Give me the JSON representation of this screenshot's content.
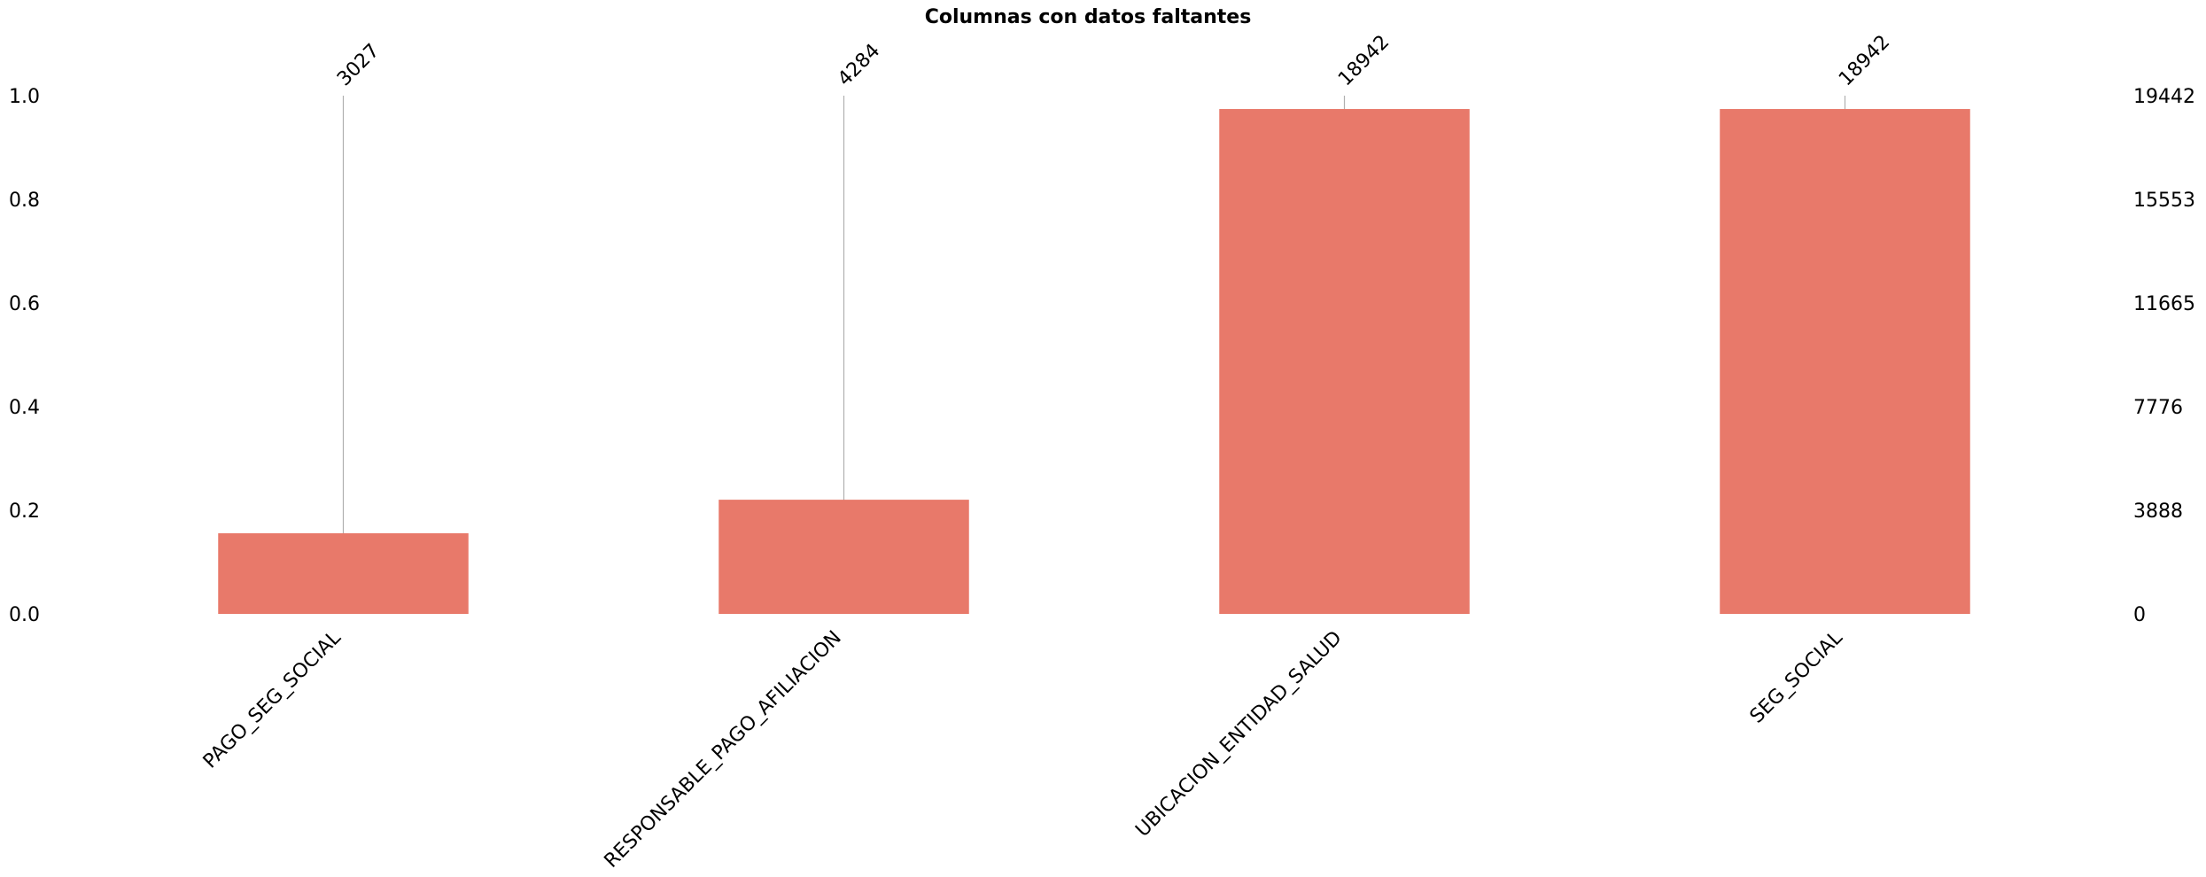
{
  "chart_data": {
    "type": "bar",
    "title": "Columnas con datos faltantes",
    "categories": [
      "PAGO_SEG_SOCIAL",
      "RESPONSABLE_PAGO_AFILIACION",
      "UBICACION_ENTIDAD_SALUD",
      "SEG_SOCIAL"
    ],
    "values": [
      3027,
      4284,
      18942,
      18942
    ],
    "total": 19442,
    "ylim": [
      0,
      1.0
    ],
    "left_ticks": [
      "0.0",
      "0.2",
      "0.4",
      "0.6",
      "0.8",
      "1.0"
    ],
    "right_ticks": [
      "0",
      "3888",
      "7776",
      "11665",
      "15553",
      "19442"
    ],
    "top_labels": [
      "3027",
      "4284",
      "18942",
      "18942"
    ],
    "bar_color": "#e8796a",
    "grid_line_color": "#b0b0b0",
    "grid": false,
    "legend": "none"
  }
}
